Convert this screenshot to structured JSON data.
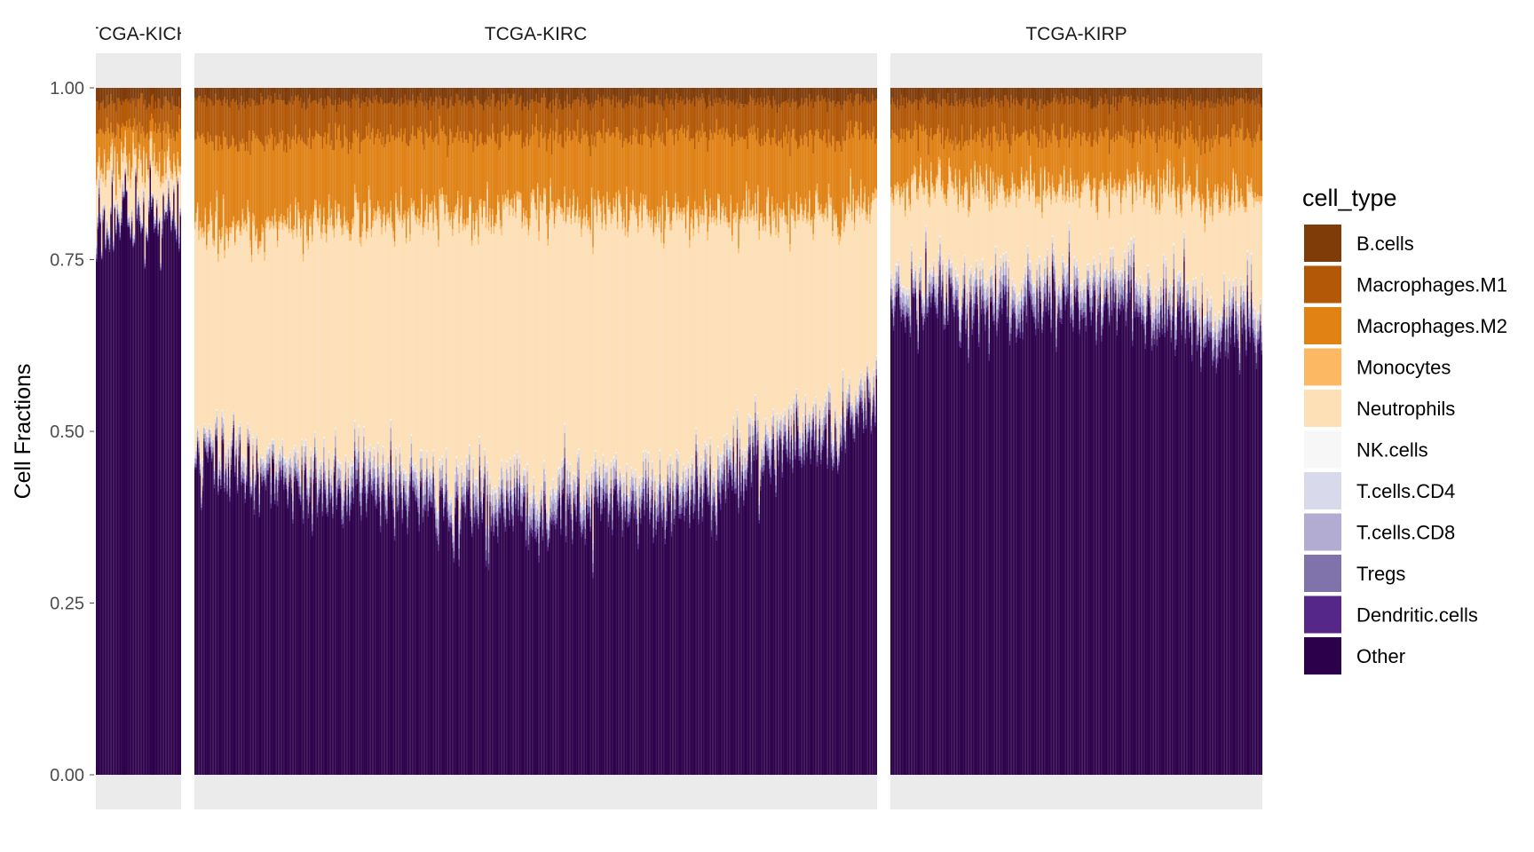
{
  "chart_data": {
    "type": "bar",
    "stacked": true,
    "ylabel": "Cell Fractions",
    "ylim": [
      0,
      1
    ],
    "yticks": [
      "0.00",
      "0.25",
      "0.50",
      "0.75",
      "1.00"
    ],
    "yticks_values": [
      0,
      0.25,
      0.5,
      0.75,
      1.0
    ],
    "grid": false,
    "facets": [
      {
        "label": "TCGA-KICH",
        "n_samples": 65,
        "profile": {
          "other": [
            0.78,
            0.8
          ],
          "tcells": [
            0.02,
            0.02
          ],
          "neutrophils": [
            0.06,
            0.06
          ],
          "monocytes": [
            0.01,
            0.01
          ],
          "macrophages_m2": [
            0.05,
            0.04
          ],
          "macrophages_m1": [
            0.04,
            0.04
          ]
        }
      },
      {
        "label": "TCGA-KIRC",
        "n_samples": 530,
        "profile": {
          "other": [
            0.44,
            0.4,
            0.36,
            0.4,
            0.52
          ],
          "tcells": [
            0.03,
            0.05,
            0.05,
            0.05,
            0.04
          ],
          "neutrophils": [
            0.3,
            0.35,
            0.4,
            0.35,
            0.25
          ],
          "monocytes": [
            0.01,
            0.01,
            0.01,
            0.01,
            0.01
          ],
          "macrophages_m2": [
            0.12,
            0.11,
            0.1,
            0.11,
            0.1
          ],
          "macrophages_m1": [
            0.06,
            0.05,
            0.05,
            0.05,
            0.05
          ]
        }
      },
      {
        "label": "TCGA-KIRP",
        "n_samples": 288,
        "profile": {
          "other": [
            0.68,
            0.66,
            0.68,
            0.66,
            0.62
          ],
          "tcells": [
            0.04,
            0.05,
            0.05,
            0.05,
            0.05
          ],
          "neutrophils": [
            0.12,
            0.13,
            0.12,
            0.13,
            0.15
          ],
          "monocytes": [
            0.01,
            0.01,
            0.01,
            0.01,
            0.01
          ],
          "macrophages_m2": [
            0.07,
            0.07,
            0.07,
            0.07,
            0.08
          ],
          "macrophages_m1": [
            0.05,
            0.05,
            0.05,
            0.05,
            0.05
          ]
        }
      }
    ],
    "legend": {
      "title": "cell_type",
      "placement": "right",
      "entries": [
        {
          "name": "B.cells",
          "color": "#7f3b08"
        },
        {
          "name": "Macrophages.M1",
          "color": "#b35806"
        },
        {
          "name": "Macrophages.M2",
          "color": "#e08214"
        },
        {
          "name": "Monocytes",
          "color": "#fdb863"
        },
        {
          "name": "Neutrophils",
          "color": "#fee0b6"
        },
        {
          "name": "NK.cells",
          "color": "#f7f7f7"
        },
        {
          "name": "T.cells.CD4",
          "color": "#d8daeb"
        },
        {
          "name": "T.cells.CD8",
          "color": "#b2abd2"
        },
        {
          "name": "Tregs",
          "color": "#8073ac"
        },
        {
          "name": "Dendritic.cells",
          "color": "#542788"
        },
        {
          "name": "Other",
          "color": "#2d004b"
        }
      ]
    }
  }
}
